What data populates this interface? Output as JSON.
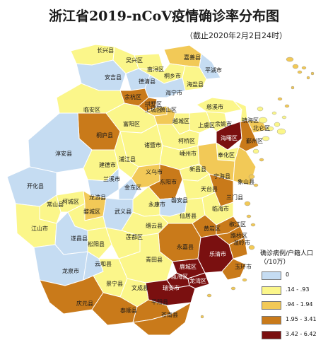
{
  "title": "浙江省2019-nCoV疫情确诊率分布图",
  "subtitle": "（截止2020年2月2日24时）",
  "colors": {
    "c0": "#c5dcf2",
    "c1": "#fbf68a",
    "c2": "#f2c957",
    "c3": "#c97a1a",
    "c4": "#7a1010",
    "border": "#ffffff",
    "sea": "#ffffff"
  },
  "legend": {
    "title": "确诊病例/户籍人口（/10万）",
    "classes": [
      {
        "label": "0",
        "color": "#c5dcf2"
      },
      {
        "label": ".14 - .93",
        "color": "#fbf68a"
      },
      {
        "label": ".94 - 1.94",
        "color": "#f2c957"
      },
      {
        "label": "1.95 - 3.41",
        "color": "#c97a1a"
      },
      {
        "label": "3.42 - 6.42",
        "color": "#7a1010"
      }
    ]
  },
  "regions": [
    {
      "name": "长兴县",
      "class": 1
    },
    {
      "name": "吴兴区",
      "class": 1
    },
    {
      "name": "南浔区",
      "class": 1
    },
    {
      "name": "嘉善县",
      "class": 2
    },
    {
      "name": "平湖市",
      "class": 0
    },
    {
      "name": "安吉县",
      "class": 0
    },
    {
      "name": "德清县",
      "class": 0
    },
    {
      "name": "桐乡市",
      "class": 1
    },
    {
      "name": "海盐县",
      "class": 1
    },
    {
      "name": "海宁市",
      "class": 0
    },
    {
      "name": "余杭区",
      "class": 3
    },
    {
      "name": "拱墅区",
      "class": 3
    },
    {
      "name": "上城区",
      "class": 2
    },
    {
      "name": "萧山区",
      "class": 2
    },
    {
      "name": "临安区",
      "class": 1
    },
    {
      "name": "富阳区",
      "class": 1
    },
    {
      "name": "桐庐县",
      "class": 3
    },
    {
      "name": "越城区",
      "class": 1
    },
    {
      "name": "上虞区",
      "class": 1
    },
    {
      "name": "慈溪市",
      "class": 1
    },
    {
      "name": "余姚市",
      "class": 1
    },
    {
      "name": "镇海区",
      "class": 1
    },
    {
      "name": "北仑区",
      "class": 2
    },
    {
      "name": "海曙区",
      "class": 4
    },
    {
      "name": "鄞州区",
      "class": 3
    },
    {
      "name": "奉化区",
      "class": 1
    },
    {
      "name": "柯桥区",
      "class": 1
    },
    {
      "name": "淳安县",
      "class": 0
    },
    {
      "name": "建德市",
      "class": 1
    },
    {
      "name": "诸暨市",
      "class": 1
    },
    {
      "name": "嵊州市",
      "class": 1
    },
    {
      "name": "新昌县",
      "class": 1
    },
    {
      "name": "宁海县",
      "class": 2
    },
    {
      "name": "象山县",
      "class": 2
    },
    {
      "name": "浦江县",
      "class": 1
    },
    {
      "name": "兰溪市",
      "class": 0
    },
    {
      "name": "金东区",
      "class": 0
    },
    {
      "name": "义乌市",
      "class": 2
    },
    {
      "name": "东阳市",
      "class": 3
    },
    {
      "name": "天台县",
      "class": 1
    },
    {
      "name": "三门县",
      "class": 3
    },
    {
      "name": "开化县",
      "class": 0
    },
    {
      "name": "常山县",
      "class": 1
    },
    {
      "name": "柯城区",
      "class": 1
    },
    {
      "name": "龙游县",
      "class": 2
    },
    {
      "name": "婺城区",
      "class": 1
    },
    {
      "name": "武义县",
      "class": 0
    },
    {
      "name": "永康市",
      "class": 1
    },
    {
      "name": "磐安县",
      "class": 0
    },
    {
      "name": "仙居县",
      "class": 1
    },
    {
      "name": "临海市",
      "class": 1
    },
    {
      "name": "江山市",
      "class": 1
    },
    {
      "name": "遂昌县",
      "class": 0
    },
    {
      "name": "松阳县",
      "class": 1
    },
    {
      "name": "缙云县",
      "class": 1
    },
    {
      "name": "莲都区",
      "class": 1
    },
    {
      "name": "黄岩区",
      "class": 3
    },
    {
      "name": "椒江区",
      "class": 3
    },
    {
      "name": "路桥区",
      "class": 3
    },
    {
      "name": "温岭市",
      "class": 3
    },
    {
      "name": "永嘉县",
      "class": 3
    },
    {
      "name": "乐清市",
      "class": 4
    },
    {
      "name": "玉环市",
      "class": 3
    },
    {
      "name": "龙泉市",
      "class": 0
    },
    {
      "name": "云和县",
      "class": 0
    },
    {
      "name": "青田县",
      "class": 1
    },
    {
      "name": "鹿城区",
      "class": 4
    },
    {
      "name": "瓯海区",
      "class": 4
    },
    {
      "name": "龙湾区",
      "class": 4
    },
    {
      "name": "瑞安市",
      "class": 4
    },
    {
      "name": "景宁县",
      "class": 1
    },
    {
      "name": "文成县",
      "class": 1
    },
    {
      "name": "庆元县",
      "class": 3
    },
    {
      "name": "泰顺县",
      "class": 3
    },
    {
      "name": "平阳县",
      "class": 3
    },
    {
      "name": "苍南县",
      "class": 3
    }
  ]
}
